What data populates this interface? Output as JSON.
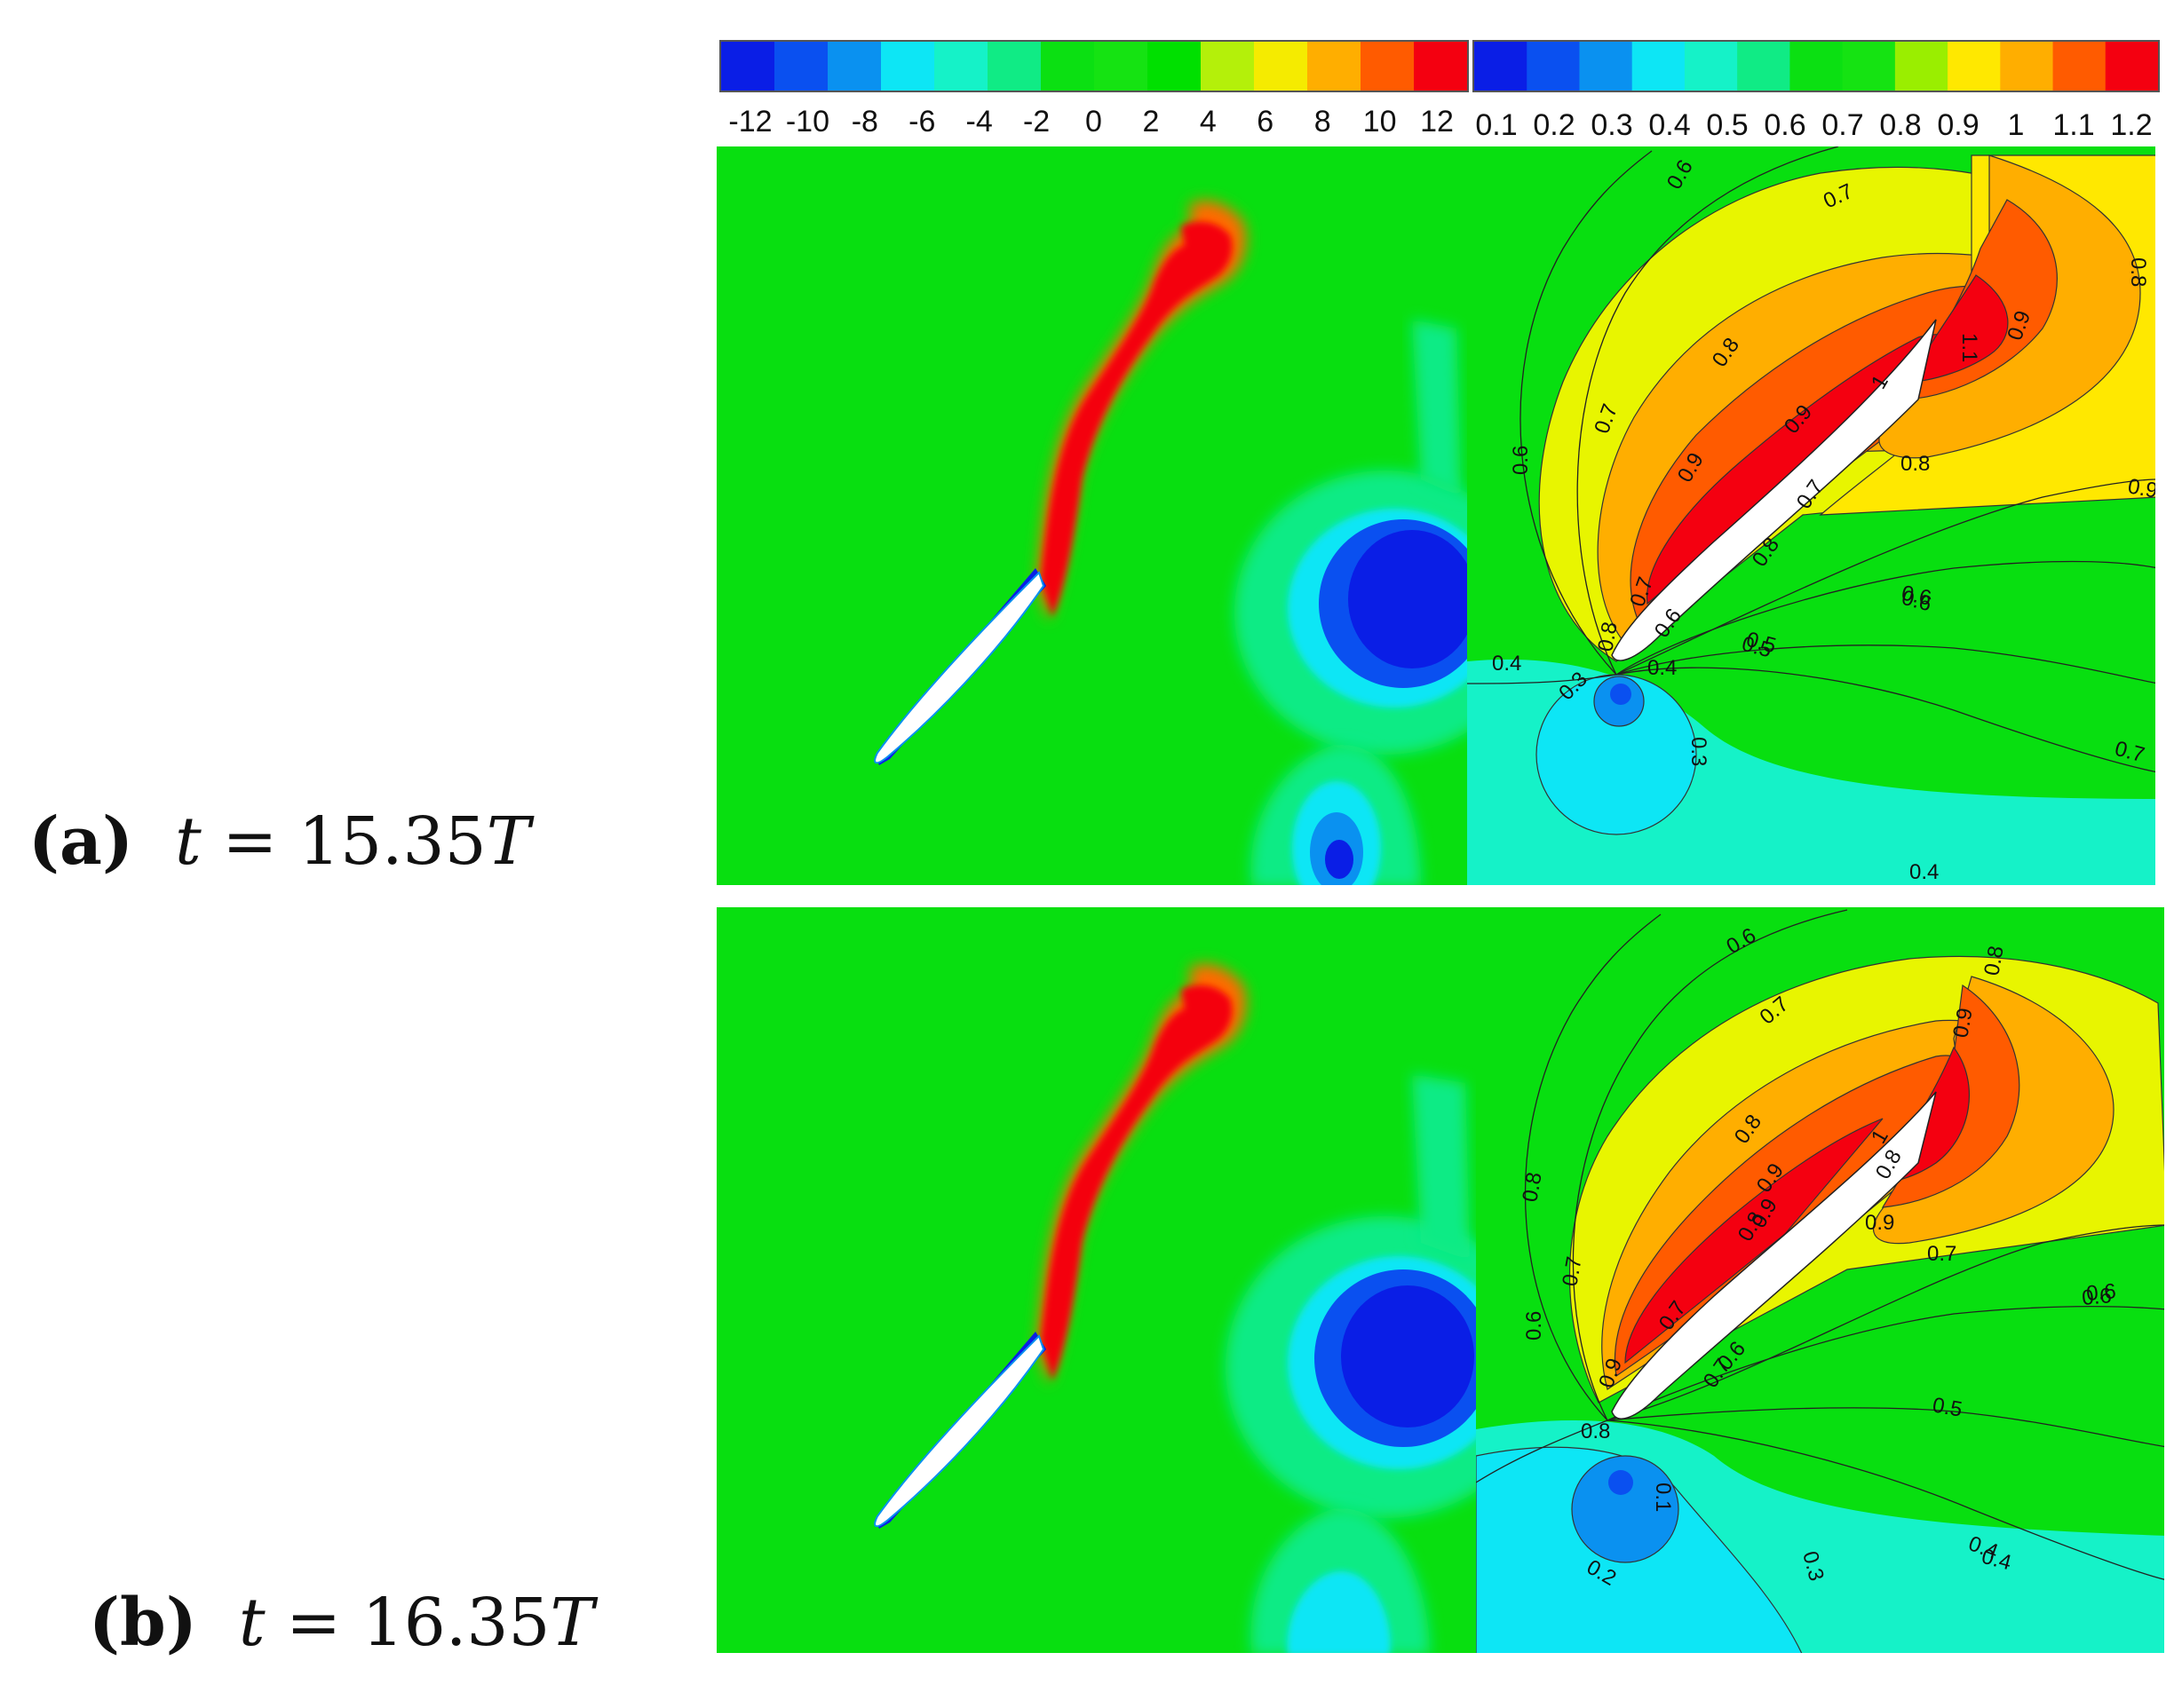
{
  "colorbars": [
    {
      "ticks": [
        "-12",
        "-10",
        "-8",
        "-6",
        "-4",
        "-2",
        "0",
        "2",
        "4",
        "6",
        "8",
        "10",
        "12"
      ],
      "colors": [
        "#0a1ee6",
        "#0a50f0",
        "#0a91f0",
        "#0de6f5",
        "#15f2c8",
        "#10eb85",
        "#0be012",
        "#15e312",
        "#00e000",
        "#b4f00a",
        "#f5eb00",
        "#ffae00",
        "#ff5b00",
        "#f40010"
      ]
    },
    {
      "ticks": [
        "0.1",
        "0.2",
        "0.3",
        "0.4",
        "0.5",
        "0.6",
        "0.7",
        "0.8",
        "0.9",
        "1",
        "1.1",
        "1.2"
      ],
      "colors": [
        "#0a1ee6",
        "#0a50f0",
        "#0a91f0",
        "#0de6f5",
        "#15f2c8",
        "#10eb85",
        "#0be012",
        "#15e312",
        "#9aee00",
        "#ffe800",
        "#ffae00",
        "#ff5b00",
        "#f40010"
      ]
    }
  ],
  "panels": [
    {
      "label_letter": "(a)",
      "label_var": "t",
      "label_eq": "=",
      "label_val": "15.35",
      "label_unit": "T",
      "contour_labels": [
        "0.6",
        "0.7",
        "0.8",
        "0.9",
        "1",
        "1.1",
        "0.8",
        "0.9",
        "0.7",
        "0.6",
        "0.9",
        "0.8",
        "0.7",
        "0.6",
        "0.5",
        "0.4",
        "0.3",
        "0.4",
        "0.8",
        "0.7",
        "0.6",
        "0.5",
        "0.3",
        "0.4",
        "0.6",
        "0.7",
        "0.9",
        "0.8"
      ]
    },
    {
      "label_letter": "(b)",
      "label_var": "t",
      "label_eq": "=",
      "label_val": "16.35",
      "label_unit": "T",
      "contour_labels": [
        "0.6",
        "0.7",
        "0.8",
        "0.9",
        "1",
        "0.8",
        "0.9",
        "0.7",
        "0.6",
        "0.5",
        "0.4",
        "0.3",
        "0.1",
        "0.2",
        "0.8",
        "0.7",
        "0.6",
        "0.9",
        "0.8",
        "0.9",
        "0.8",
        "0.7",
        "0.6",
        "0.6",
        "0.7",
        "0.8",
        "0.9",
        "0.4"
      ]
    }
  ]
}
